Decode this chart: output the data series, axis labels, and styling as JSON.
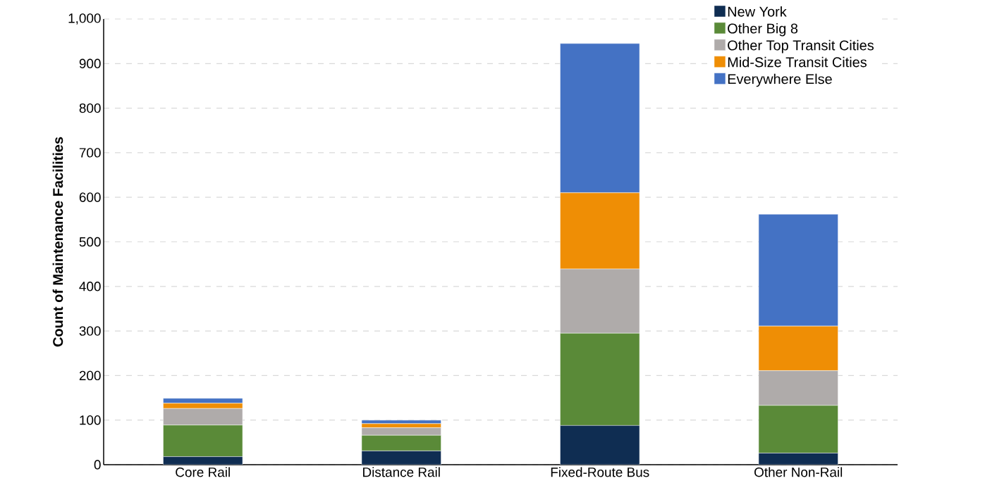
{
  "chart_data": {
    "type": "bar",
    "stacked": true,
    "ylabel": "Count of Maintenance Facilities",
    "categories": [
      "Core Rail",
      "Distance Rail",
      "Fixed-Route Bus",
      "Other Non-Rail"
    ],
    "series": [
      {
        "name": "New York",
        "color": "#0f2d52",
        "values": [
          18,
          31,
          88,
          26
        ]
      },
      {
        "name": "Other Big 8",
        "color": "#5a8a38",
        "values": [
          71,
          35,
          207,
          107
        ]
      },
      {
        "name": "Other Top Transit Cities",
        "color": "#afabaa",
        "values": [
          37,
          17,
          144,
          78
        ]
      },
      {
        "name": "Mid-Size Transit Cities",
        "color": "#ef8e05",
        "values": [
          12,
          9,
          171,
          100
        ]
      },
      {
        "name": "Everywhere Else",
        "color": "#4472c4",
        "values": [
          11,
          8,
          335,
          251
        ]
      }
    ],
    "ylim": [
      0,
      1000
    ],
    "yticks": [
      0,
      100,
      200,
      300,
      400,
      500,
      600,
      700,
      800,
      900,
      {
        "value": 1000,
        "label": "1,000"
      }
    ],
    "grid": "y",
    "legend": "top right"
  }
}
